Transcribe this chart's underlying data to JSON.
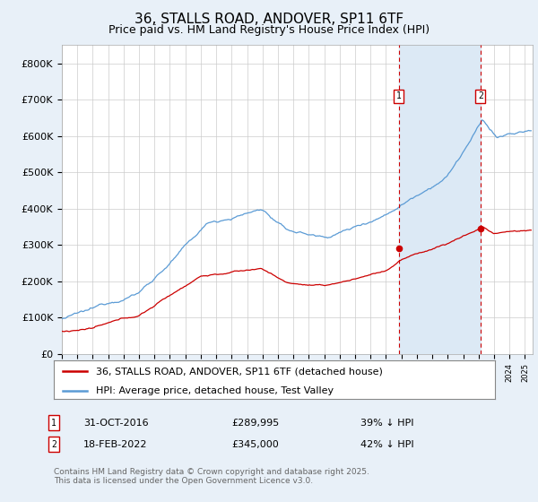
{
  "title": "36, STALLS ROAD, ANDOVER, SP11 6TF",
  "subtitle": "Price paid vs. HM Land Registry's House Price Index (HPI)",
  "ylabel_ticks": [
    "£0",
    "£100K",
    "£200K",
    "£300K",
    "£400K",
    "£500K",
    "£600K",
    "£700K",
    "£800K"
  ],
  "ytick_values": [
    0,
    100000,
    200000,
    300000,
    400000,
    500000,
    600000,
    700000,
    800000
  ],
  "ylim": [
    0,
    850000
  ],
  "xlim_start": 1995.0,
  "xlim_end": 2025.5,
  "hpi_color": "#5b9bd5",
  "hpi_fill_color": "#dce9f5",
  "price_color": "#cc0000",
  "marker1_date": 2016.83,
  "marker2_date": 2022.12,
  "marker1_price": 289995,
  "marker2_price": 345000,
  "legend_label_price": "36, STALLS ROAD, ANDOVER, SP11 6TF (detached house)",
  "legend_label_hpi": "HPI: Average price, detached house, Test Valley",
  "footer": "Contains HM Land Registry data © Crown copyright and database right 2025.\nThis data is licensed under the Open Government Licence v3.0.",
  "background_color": "#e8f0f8",
  "plot_bg_color": "#ffffff",
  "grid_color": "#cccccc",
  "title_fontsize": 11,
  "subtitle_fontsize": 9,
  "tick_fontsize": 8,
  "legend_fontsize": 8,
  "footer_fontsize": 6.5,
  "note1_date": "31-OCT-2016",
  "note1_price": "£289,995",
  "note1_pct": "39% ↓ HPI",
  "note2_date": "18-FEB-2022",
  "note2_price": "£345,000",
  "note2_pct": "42% ↓ HPI"
}
